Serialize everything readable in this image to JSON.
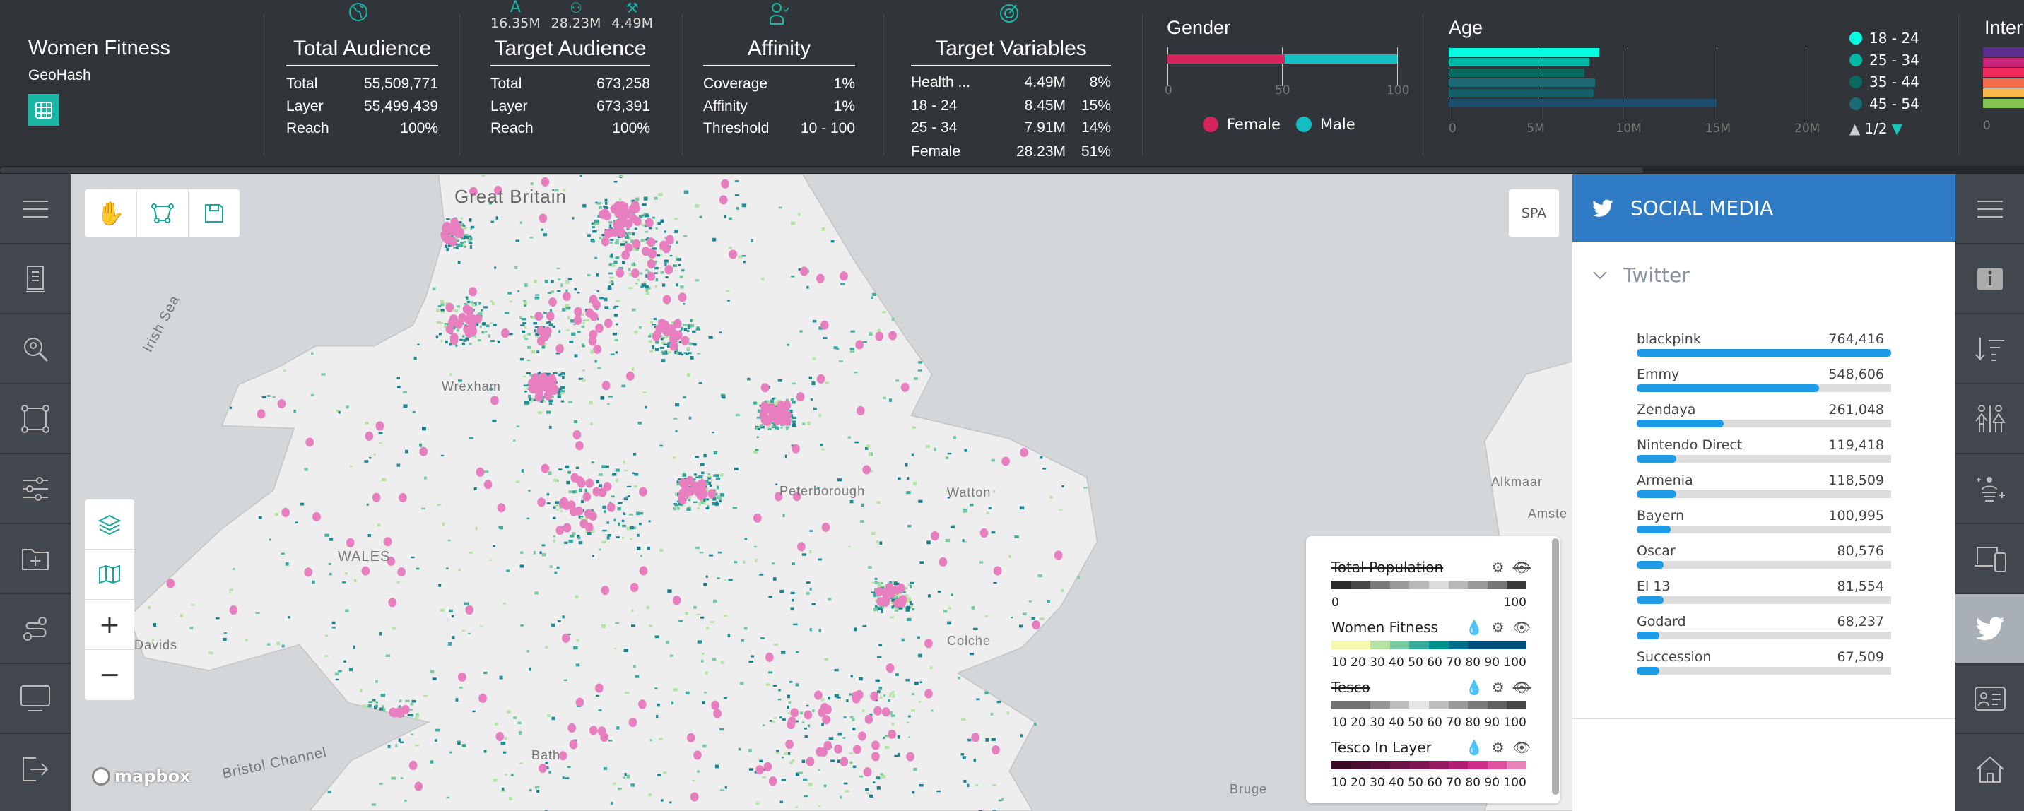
{
  "project": {
    "title": "Women Fitness",
    "subtitle": "GeoHash"
  },
  "total_audience": {
    "title": "Total Audience",
    "rows": [
      {
        "label": "Total",
        "value": "55,509,771"
      },
      {
        "label": "Layer",
        "value": "55,499,439"
      },
      {
        "label": "Reach",
        "value": "100%"
      }
    ]
  },
  "target_audience": {
    "title": "Target Audience",
    "top_stats": [
      "16.35M",
      "28.23M",
      "4.49M"
    ],
    "rows": [
      {
        "label": "Total",
        "value": "673,258"
      },
      {
        "label": "Layer",
        "value": "673,391"
      },
      {
        "label": "Reach",
        "value": "100%"
      }
    ]
  },
  "affinity": {
    "title": "Affinity",
    "rows": [
      {
        "label": "Coverage",
        "value": "1%"
      },
      {
        "label": "Affinity",
        "value": "1%"
      },
      {
        "label": "Threshold",
        "value": "10 - 100"
      }
    ]
  },
  "target_variables": {
    "title": "Target Variables",
    "rows": [
      {
        "label": "Health ...",
        "value": "4.49M",
        "pct": "8%"
      },
      {
        "label": "18 - 24",
        "value": "8.45M",
        "pct": "15%"
      },
      {
        "label": "25 - 34",
        "value": "7.91M",
        "pct": "14%"
      },
      {
        "label": "Female",
        "value": "28.23M",
        "pct": "51%"
      }
    ]
  },
  "gender": {
    "title": "Gender",
    "female_pct": 51,
    "ticks": [
      "0",
      "50",
      "100"
    ],
    "legend": [
      {
        "label": "Female",
        "color": "#d6245c"
      },
      {
        "label": "Male",
        "color": "#15bec4"
      }
    ]
  },
  "age": {
    "title": "Age",
    "ticks": [
      "0",
      "5M",
      "10M",
      "15M",
      "20M"
    ],
    "max": 20,
    "bars": [
      {
        "value": 8.45,
        "color": "#00ffe0"
      },
      {
        "value": 7.9,
        "color": "#00b8a4"
      },
      {
        "value": 7.6,
        "color": "#066b5c"
      },
      {
        "value": 8.2,
        "color": "#1b6a75"
      },
      {
        "value": 8.1,
        "color": "#155f69"
      },
      {
        "value": 15.0,
        "color": "#1d4f6b"
      }
    ],
    "legend": [
      {
        "label": "18 - 24",
        "color": "#00ffe0"
      },
      {
        "label": "25 - 34",
        "color": "#00b8a4"
      },
      {
        "label": "35 - 44",
        "color": "#066b5c"
      },
      {
        "label": "45 - 54",
        "color": "#1b6a75"
      }
    ],
    "pager": "1/2"
  },
  "interests": {
    "title": "Inter",
    "tick": "0",
    "colors": [
      "#5c2d91",
      "#c8267a",
      "#ee2a5c",
      "#f26b4a",
      "#fbb84a",
      "#84c450"
    ]
  },
  "map": {
    "spa_label": "SPA",
    "attribution": "mapbox",
    "labels": [
      "Great Britain",
      "Irish Sea",
      "WALES",
      "Wrexham",
      "Peterborough",
      "Watton",
      "Alkmaar",
      "Amste",
      "Davids",
      "Bristol Channel",
      "Colche",
      "Bath",
      "Bruge"
    ]
  },
  "legend": [
    {
      "title": "Total Population",
      "hidden": true,
      "labels": [
        "0",
        "100"
      ],
      "colors": [
        "#2a2a2a",
        "#4a4a4a",
        "#7a7a7a",
        "#999",
        "#b8b8b8",
        "#dcdcdc",
        "#b8b8b8",
        "#999",
        "#777",
        "#3a3a3a"
      ]
    },
    {
      "title": "Women Fitness",
      "hidden": false,
      "labels": [
        "10",
        "20",
        "30",
        "40",
        "50",
        "60",
        "70",
        "80",
        "90",
        "100"
      ],
      "colors": [
        "#f5f9b0",
        "#f5f9b0",
        "#b5e3a3",
        "#7acaa3",
        "#3aaa9c",
        "#00918f",
        "#006e88",
        "#004f78",
        "#004f78",
        "#004f78"
      ]
    },
    {
      "title": "Tesco",
      "hidden": true,
      "labels": [
        "10",
        "20",
        "30",
        "40",
        "50",
        "60",
        "70",
        "80",
        "90",
        "100"
      ],
      "colors": [
        "#727272",
        "#727272",
        "#959595",
        "#bdbdbd",
        "#e6e6e6",
        "#bdbdbd",
        "#9a9a9a",
        "#7a7a7a",
        "#616161",
        "#474747"
      ]
    },
    {
      "title": "Tesco In Layer",
      "hidden": false,
      "labels": [
        "10",
        "20",
        "30",
        "40",
        "50",
        "60",
        "70",
        "80",
        "90",
        "100"
      ],
      "colors": [
        "#3a0a24",
        "#4a0d30",
        "#5a0f3a",
        "#6b1246",
        "#7c1550",
        "#951a62",
        "#b11f72",
        "#cf2d8a",
        "#e050a0",
        "#e983bb"
      ]
    }
  ],
  "social": {
    "title": "SOCIAL MEDIA",
    "section": "Twitter",
    "max": 764416,
    "items": [
      {
        "name": "blackpink",
        "label": "764,416",
        "value": 764416
      },
      {
        "name": "Emmy",
        "label": "548,606",
        "value": 548606
      },
      {
        "name": "Zendaya",
        "label": "261,048",
        "value": 261048
      },
      {
        "name": "Nintendo Direct",
        "label": "119,418",
        "value": 119418
      },
      {
        "name": "Armenia",
        "label": "118,509",
        "value": 118509
      },
      {
        "name": "Bayern",
        "label": "100,995",
        "value": 100995
      },
      {
        "name": "Oscar",
        "label": "80,576",
        "value": 80576
      },
      {
        "name": "El 13",
        "label": "81,554",
        "value": 81554
      },
      {
        "name": "Godard",
        "label": "68,237",
        "value": 68237
      },
      {
        "name": "Succession",
        "label": "67,509",
        "value": 67509
      }
    ]
  },
  "colors": {
    "accent": "#19b5a5",
    "social": "#2f7bc5",
    "bar": "#1e9be6",
    "pink": "#e77fbf",
    "teal_dot": "#1f8c95"
  }
}
